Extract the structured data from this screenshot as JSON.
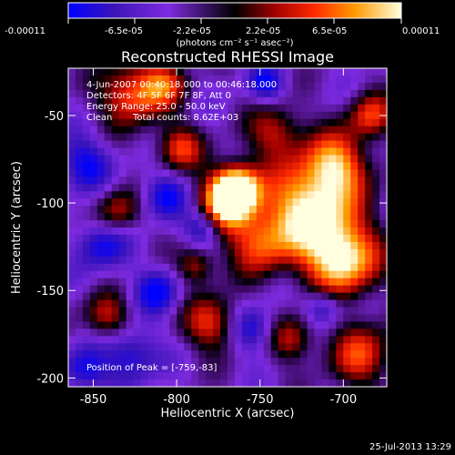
{
  "chart_data": {
    "type": "heatmap",
    "title": "Reconstructed RHESSI Image",
    "xlabel": "Heliocentric X (arcsec)",
    "ylabel": "Heliocentric Y (arcsec)",
    "xlim": [
      -865,
      -674
    ],
    "ylim": [
      -205,
      -23
    ],
    "x_ticks": [
      -850,
      -800,
      -750,
      -700
    ],
    "y_ticks": [
      -50,
      -100,
      -150,
      -200
    ],
    "x_tick_labels": [
      "-850",
      "-800",
      "-750",
      "-700"
    ],
    "y_tick_labels": [
      "-50",
      "-100",
      "-150",
      "-200"
    ],
    "colorbar": {
      "range": [
        -0.00011,
        0.00011
      ],
      "tick_labels": [
        "-0.00011",
        "-6.5e-05",
        "-2.2e-05",
        "2.2e-05",
        "6.5e-05",
        "0.00011"
      ],
      "units_label": "(photons cm⁻² s⁻¹ asec⁻²)",
      "colors": [
        "#0000ff",
        "#4b1aa7",
        "#7e2be0",
        "#000000",
        "#a00000",
        "#ff2a00",
        "#ff9a00",
        "#ffffe0"
      ]
    },
    "annotations": {
      "time_range": "4-Jun-2007 00:40:18.000 to 00:46:18.000",
      "detectors": "Detectors: 4F 5F 6F 7F 8F, Att 0",
      "energy_range": "Energy Range: 25.0 - 50.0 keV",
      "clean_label": "Clean",
      "total_counts": "Total counts: 8.62E+03",
      "peak_position": "Position of Peak = [-759,-83]"
    },
    "peak": [
      -759,
      -83
    ],
    "grid": false,
    "legend": "colorbar-top"
  },
  "footer": {
    "timestamp": "25-Jul-2013 13:29"
  }
}
